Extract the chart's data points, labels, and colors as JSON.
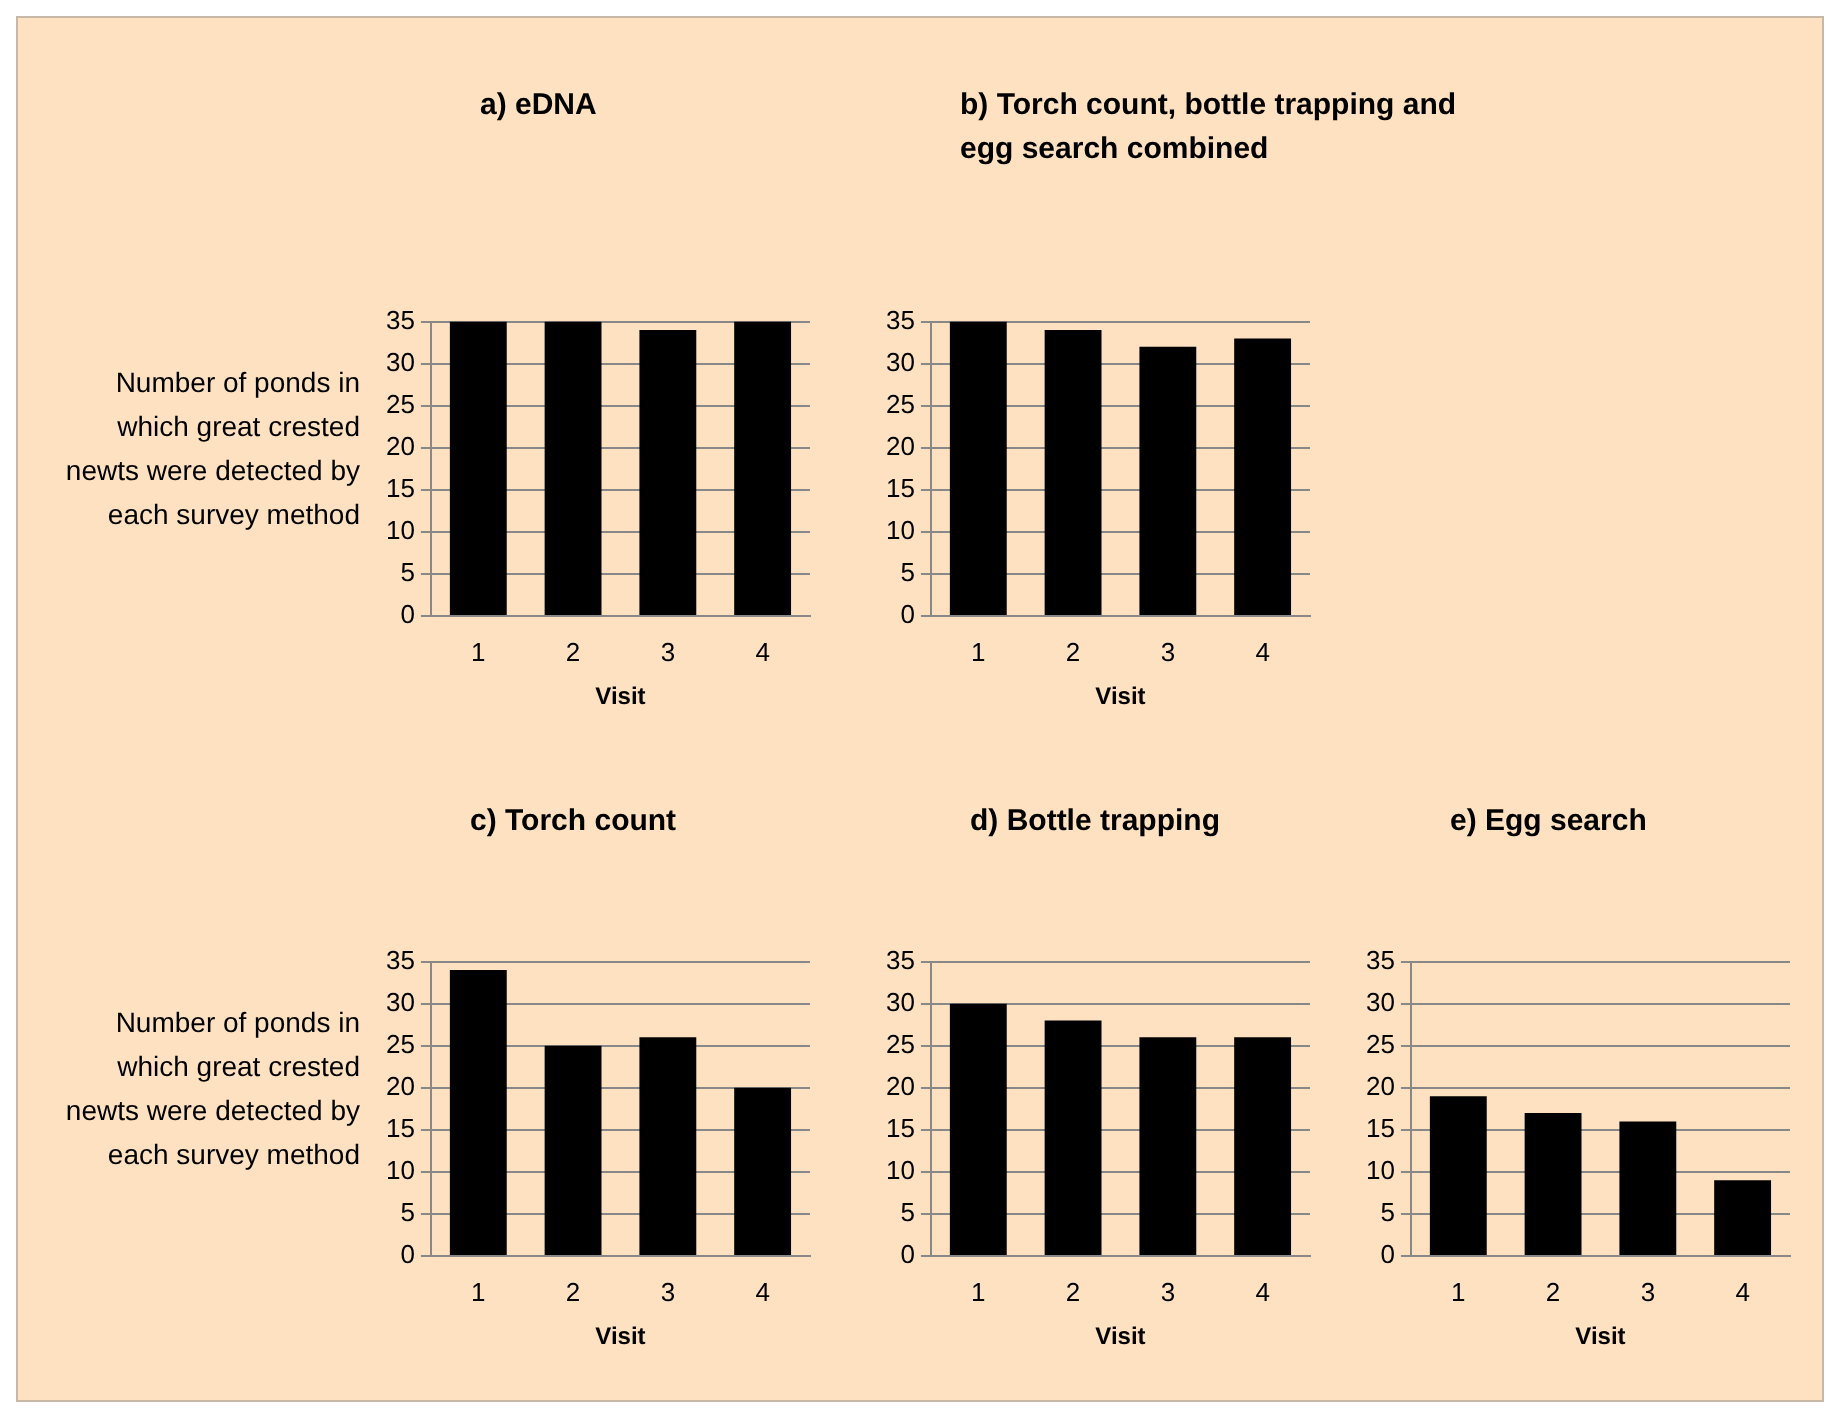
{
  "chart_data": [
    {
      "type": "bar",
      "title": "a) eDNA",
      "ylabel": "Number of ponds in which great crested newts were detected by each survey method",
      "xlabel": "Visit",
      "categories": [
        "1",
        "2",
        "3",
        "4"
      ],
      "values": [
        35,
        35,
        34,
        35
      ],
      "color": "#000000",
      "ylim": [
        0,
        35
      ],
      "yticks": [
        0,
        5,
        10,
        15,
        20,
        25,
        30,
        35
      ],
      "grid": "y"
    },
    {
      "type": "bar",
      "title": "b) Torch count, bottle trapping and egg search combined",
      "xlabel": "Visit",
      "categories": [
        "1",
        "2",
        "3",
        "4"
      ],
      "values": [
        35,
        34,
        32,
        33
      ],
      "color": "#000000",
      "ylim": [
        0,
        35
      ],
      "yticks": [
        0,
        5,
        10,
        15,
        20,
        25,
        30,
        35
      ],
      "grid": "y"
    },
    {
      "type": "bar",
      "title": "c) Torch count",
      "ylabel": "Number of ponds in which great crested newts were detected by each survey method",
      "xlabel": "Visit",
      "categories": [
        "1",
        "2",
        "3",
        "4"
      ],
      "values": [
        34,
        25,
        26,
        20
      ],
      "color": "#000000",
      "ylim": [
        0,
        35
      ],
      "yticks": [
        0,
        5,
        10,
        15,
        20,
        25,
        30,
        35
      ],
      "grid": "y"
    },
    {
      "type": "bar",
      "title": "d) Bottle trapping",
      "xlabel": "Visit",
      "categories": [
        "1",
        "2",
        "3",
        "4"
      ],
      "values": [
        30,
        28,
        26,
        26
      ],
      "color": "#000000",
      "ylim": [
        0,
        35
      ],
      "yticks": [
        0,
        5,
        10,
        15,
        20,
        25,
        30,
        35
      ],
      "grid": "y"
    },
    {
      "type": "bar",
      "title": "e) Egg search",
      "xlabel": "Visit",
      "categories": [
        "1",
        "2",
        "3",
        "4"
      ],
      "values": [
        19,
        17,
        16,
        9
      ],
      "color": "#000000",
      "ylim": [
        0,
        35
      ],
      "yticks": [
        0,
        5,
        10,
        15,
        20,
        25,
        30,
        35
      ],
      "grid": "y"
    }
  ]
}
